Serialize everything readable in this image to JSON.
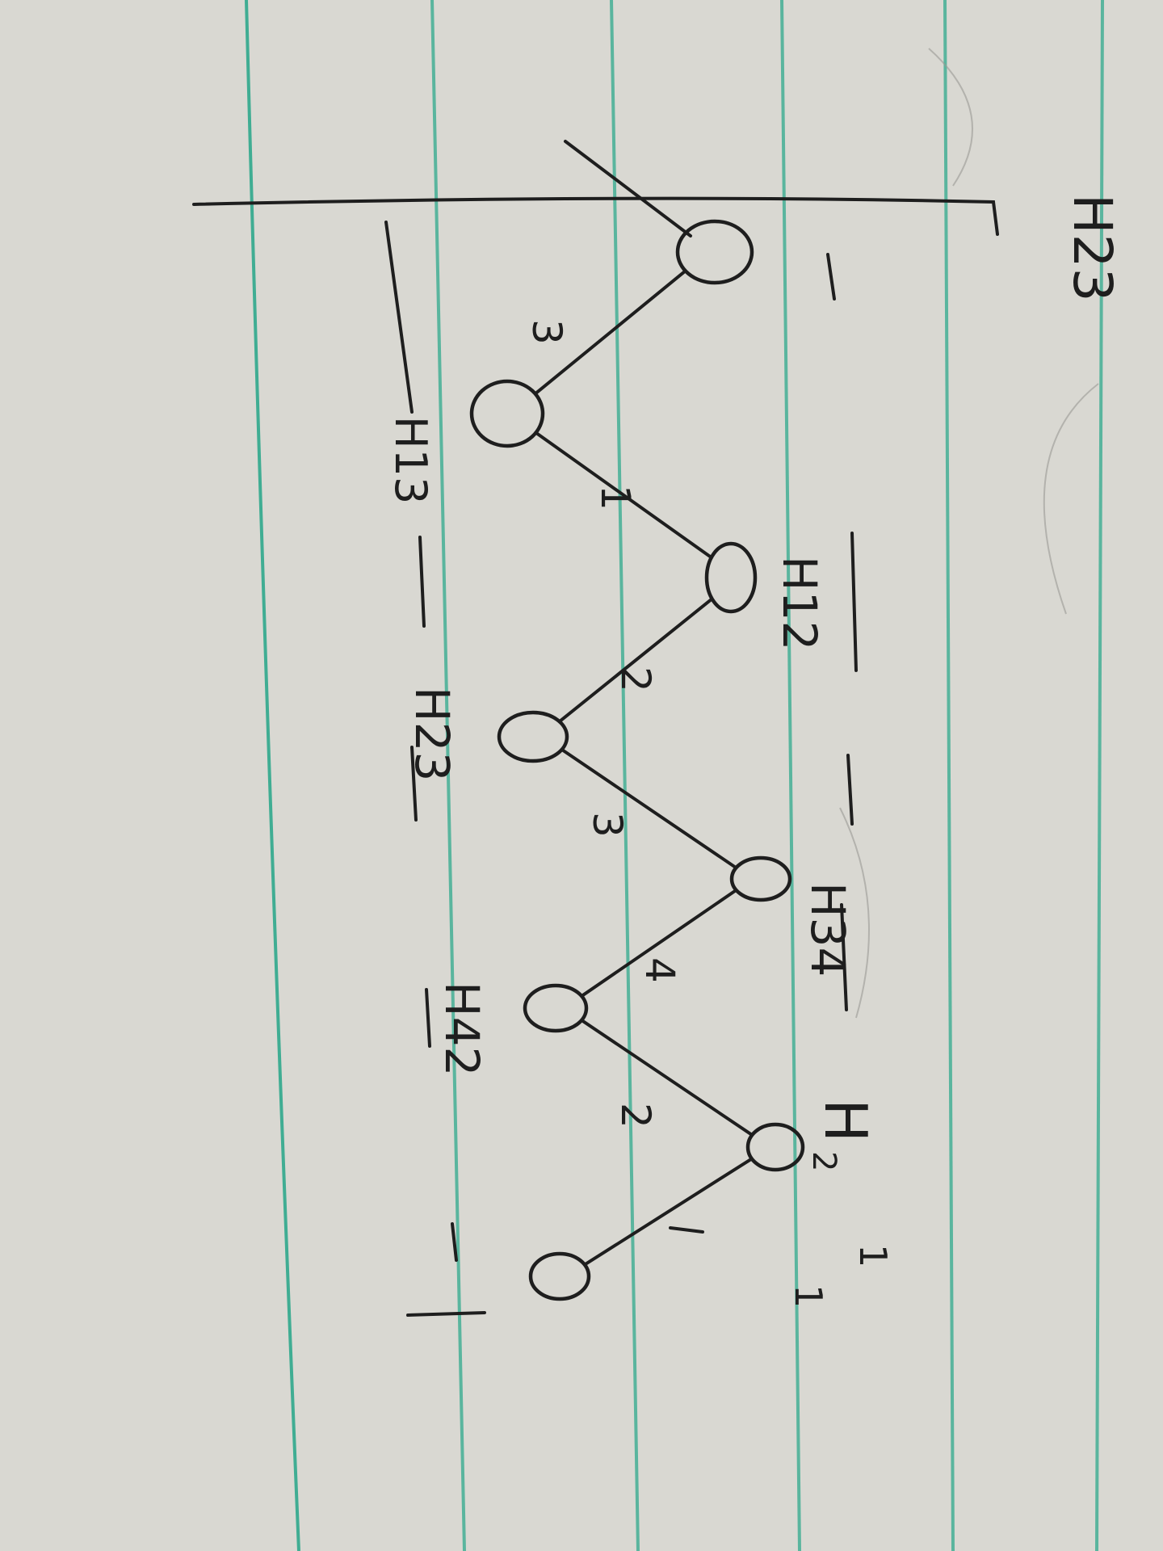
{
  "paper": {
    "background": "#d9d8d2",
    "rule_color": "#2fa98c",
    "ink_color": "#1e1e1e"
  },
  "diagram": {
    "nodes": [
      {
        "id": "n1",
        "label": ""
      },
      {
        "id": "n2",
        "label": "H13"
      },
      {
        "id": "n3",
        "label": "H12"
      },
      {
        "id": "n4",
        "label": "H23"
      },
      {
        "id": "n5",
        "label": "H34"
      },
      {
        "id": "n6",
        "label": "H42"
      },
      {
        "id": "n7",
        "label": "H"
      },
      {
        "id": "n8",
        "label": ""
      }
    ],
    "node_superscripts": {
      "n7": "2"
    },
    "edges": [
      {
        "from": "n1",
        "to": "n2",
        "weight": "3"
      },
      {
        "from": "n2",
        "to": "n3",
        "weight": "1"
      },
      {
        "from": "n3",
        "to": "n4",
        "weight": "2"
      },
      {
        "from": "n4",
        "to": "n5",
        "weight": "3"
      },
      {
        "from": "n5",
        "to": "n6",
        "weight": "4"
      },
      {
        "from": "n6",
        "to": "n7",
        "weight": "2"
      },
      {
        "from": "n7",
        "to": "n8",
        "weight": ""
      }
    ],
    "corner_label": "H23",
    "edge_marks": [
      "1",
      "1"
    ]
  }
}
